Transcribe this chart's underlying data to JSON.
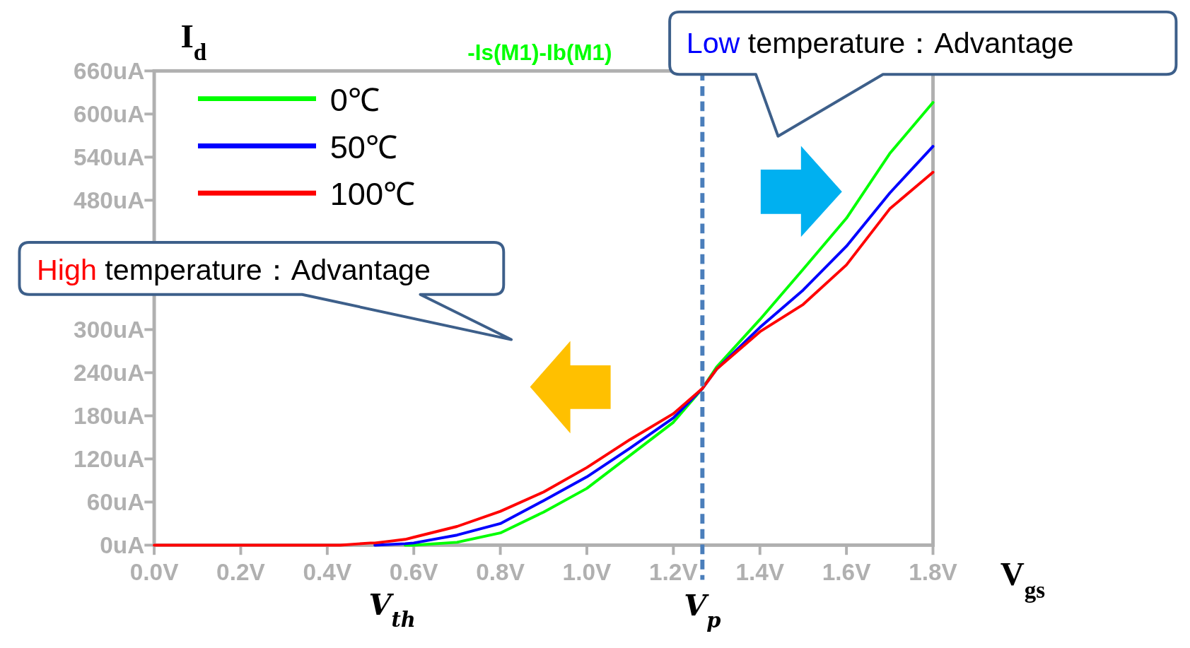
{
  "chart_data": {
    "type": "line",
    "title": "-Is(M1)-Ib(M1)",
    "xlabel": "V$_{gs}$",
    "ylabel": "I$_{d}$",
    "x": [
      0,
      0.1,
      0.2,
      0.3,
      0.4,
      0.43,
      0.5,
      0.51,
      0.58,
      0.6,
      0.7,
      0.8,
      0.9,
      1.0,
      1.1,
      1.2,
      1.267,
      1.3,
      1.4,
      1.5,
      1.6,
      1.7,
      1.8
    ],
    "series": [
      {
        "name": "0℃",
        "color": "#00ff00",
        "values": [
          null,
          null,
          null,
          null,
          null,
          null,
          null,
          null,
          0,
          0,
          4,
          17,
          46,
          79,
          125,
          171,
          218,
          248,
          314,
          384,
          455,
          545,
          616
        ]
      },
      {
        "name": "50℃",
        "color": "#0000ff",
        "values": [
          null,
          null,
          null,
          null,
          null,
          null,
          null,
          0,
          2,
          3,
          14,
          30,
          62,
          95,
          135,
          177,
          218,
          245,
          303,
          355,
          416,
          490,
          555
        ]
      },
      {
        "name": "100℃",
        "color": "#ff0000",
        "values": [
          0,
          0,
          0,
          0,
          0,
          0,
          3,
          3,
          8,
          11,
          26,
          47,
          74,
          108,
          147,
          183,
          218,
          245,
          297,
          335,
          390,
          468,
          519
        ]
      }
    ],
    "xlim": [
      0,
      1.8
    ],
    "ylim": [
      0,
      660
    ],
    "xticks": [
      {
        "value": 0,
        "label": "0.0V"
      },
      {
        "value": 0.2,
        "label": "0.2V"
      },
      {
        "value": 0.4,
        "label": "0.4V"
      },
      {
        "value": 0.6,
        "label": "0.6V"
      },
      {
        "value": 0.8,
        "label": "0.8V"
      },
      {
        "value": 1.0,
        "label": "1.0V"
      },
      {
        "value": 1.2,
        "label": "1.2V"
      },
      {
        "value": 1.4,
        "label": "1.4V"
      },
      {
        "value": 1.6,
        "label": "1.6V"
      },
      {
        "value": 1.8,
        "label": "1.8V"
      }
    ],
    "yticks": [
      {
        "value": 0,
        "label": "0uA"
      },
      {
        "value": 60,
        "label": "60uA"
      },
      {
        "value": 120,
        "label": "120uA"
      },
      {
        "value": 180,
        "label": "180uA"
      },
      {
        "value": 240,
        "label": "240uA"
      },
      {
        "value": 300,
        "label": "300uA"
      },
      {
        "value": 360,
        "label": null
      },
      {
        "value": 420,
        "label": null
      },
      {
        "value": 480,
        "label": "480uA"
      },
      {
        "value": 540,
        "label": "540uA"
      },
      {
        "value": 600,
        "label": "600uA"
      },
      {
        "value": 660,
        "label": "660uA"
      }
    ],
    "ref_lines": [
      {
        "axis": "x",
        "value": 1.267,
        "label": "V$_{p}$",
        "color": "#4a7ebb",
        "line_style": "dashed"
      }
    ],
    "annotations": [
      "High temperature：Advantage",
      "Low temperature：Advantage",
      {
        "text": "V$_{th}$",
        "x": 0.55,
        "y": 0
      }
    ],
    "legend": "top left",
    "grid": false,
    "line_style": "solid",
    "marker": "none"
  }
}
